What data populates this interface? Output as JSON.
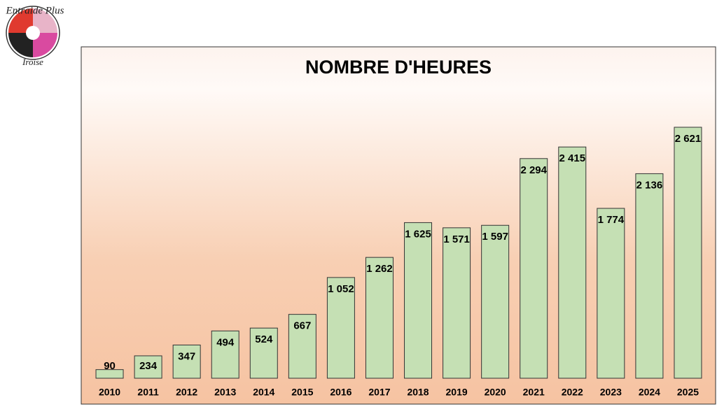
{
  "logo": {
    "top": "Entraide Plus",
    "bottom": "Iroise"
  },
  "chart_data": {
    "type": "bar",
    "title": "NOMBRE D'HEURES",
    "categories": [
      "2010",
      "2011",
      "2012",
      "2013",
      "2014",
      "2015",
      "2016",
      "2017",
      "2018",
      "2019",
      "2020",
      "2021",
      "2022",
      "2023",
      "2024",
      "2025"
    ],
    "values": [
      90,
      234,
      347,
      494,
      524,
      667,
      1052,
      1262,
      1625,
      1571,
      1597,
      2294,
      2415,
      1774,
      2136,
      2621
    ],
    "value_labels": [
      "90",
      "234",
      "347",
      "494",
      "524",
      "667",
      "1 052",
      "1 262",
      "1 625",
      "1 571",
      "1 597",
      "2 294",
      "2 415",
      "1 774",
      "2 136",
      "2 621"
    ],
    "color": "#c5e0b4"
  }
}
